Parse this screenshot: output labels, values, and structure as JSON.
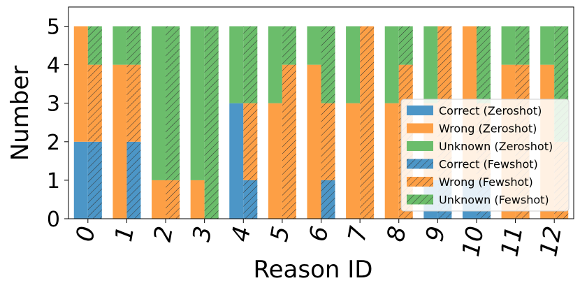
{
  "chart_data": {
    "type": "bar",
    "xlabel": "Reason ID",
    "ylabel": "Number",
    "categories": [
      "0",
      "1",
      "2",
      "3",
      "4",
      "5",
      "6",
      "7",
      "8",
      "9",
      "10",
      "11",
      "12"
    ],
    "y_ticks": [
      "0",
      "1",
      "2",
      "3",
      "4",
      "5"
    ],
    "ylim": [
      0,
      5.5
    ],
    "stacked": true,
    "grid": false,
    "legend_position": "lower-right",
    "groups": [
      {
        "setting": "Zeroshot",
        "hatched": false,
        "series": [
          {
            "name": "Correct (Zeroshot)",
            "color": "#4c96c7",
            "values": [
              2,
              0,
              0,
              0,
              3,
              0,
              0,
              0,
              0,
              1,
              1,
              0,
              0
            ]
          },
          {
            "name": "Wrong (Zeroshot)",
            "color": "#fd9f45",
            "values": [
              3,
              4,
              1,
              1,
              0,
              3,
              4,
              3,
              3,
              2,
              4,
              4,
              4
            ]
          },
          {
            "name": "Unknown (Zeroshot)",
            "color": "#6bbd6b",
            "values": [
              0,
              1,
              4,
              4,
              2,
              2,
              1,
              2,
              2,
              2,
              0,
              1,
              1
            ]
          }
        ]
      },
      {
        "setting": "Fewshot",
        "hatched": true,
        "series": [
          {
            "name": "Correct (Fewshot)",
            "color": "#4c96c7",
            "values": [
              2,
              2,
              0,
              0,
              1,
              0,
              1,
              0,
              0,
              1,
              1,
              0,
              0
            ]
          },
          {
            "name": "Wrong (Fewshot)",
            "color": "#fd9f45",
            "values": [
              2,
              2,
              1,
              0,
              2,
              4,
              2,
              5,
              4,
              4,
              2,
              4,
              2
            ]
          },
          {
            "name": "Unknown (Fewshot)",
            "color": "#6bbd6b",
            "values": [
              1,
              1,
              4,
              5,
              2,
              1,
              2,
              0,
              1,
              0,
              2,
              1,
              3
            ]
          }
        ]
      }
    ]
  }
}
